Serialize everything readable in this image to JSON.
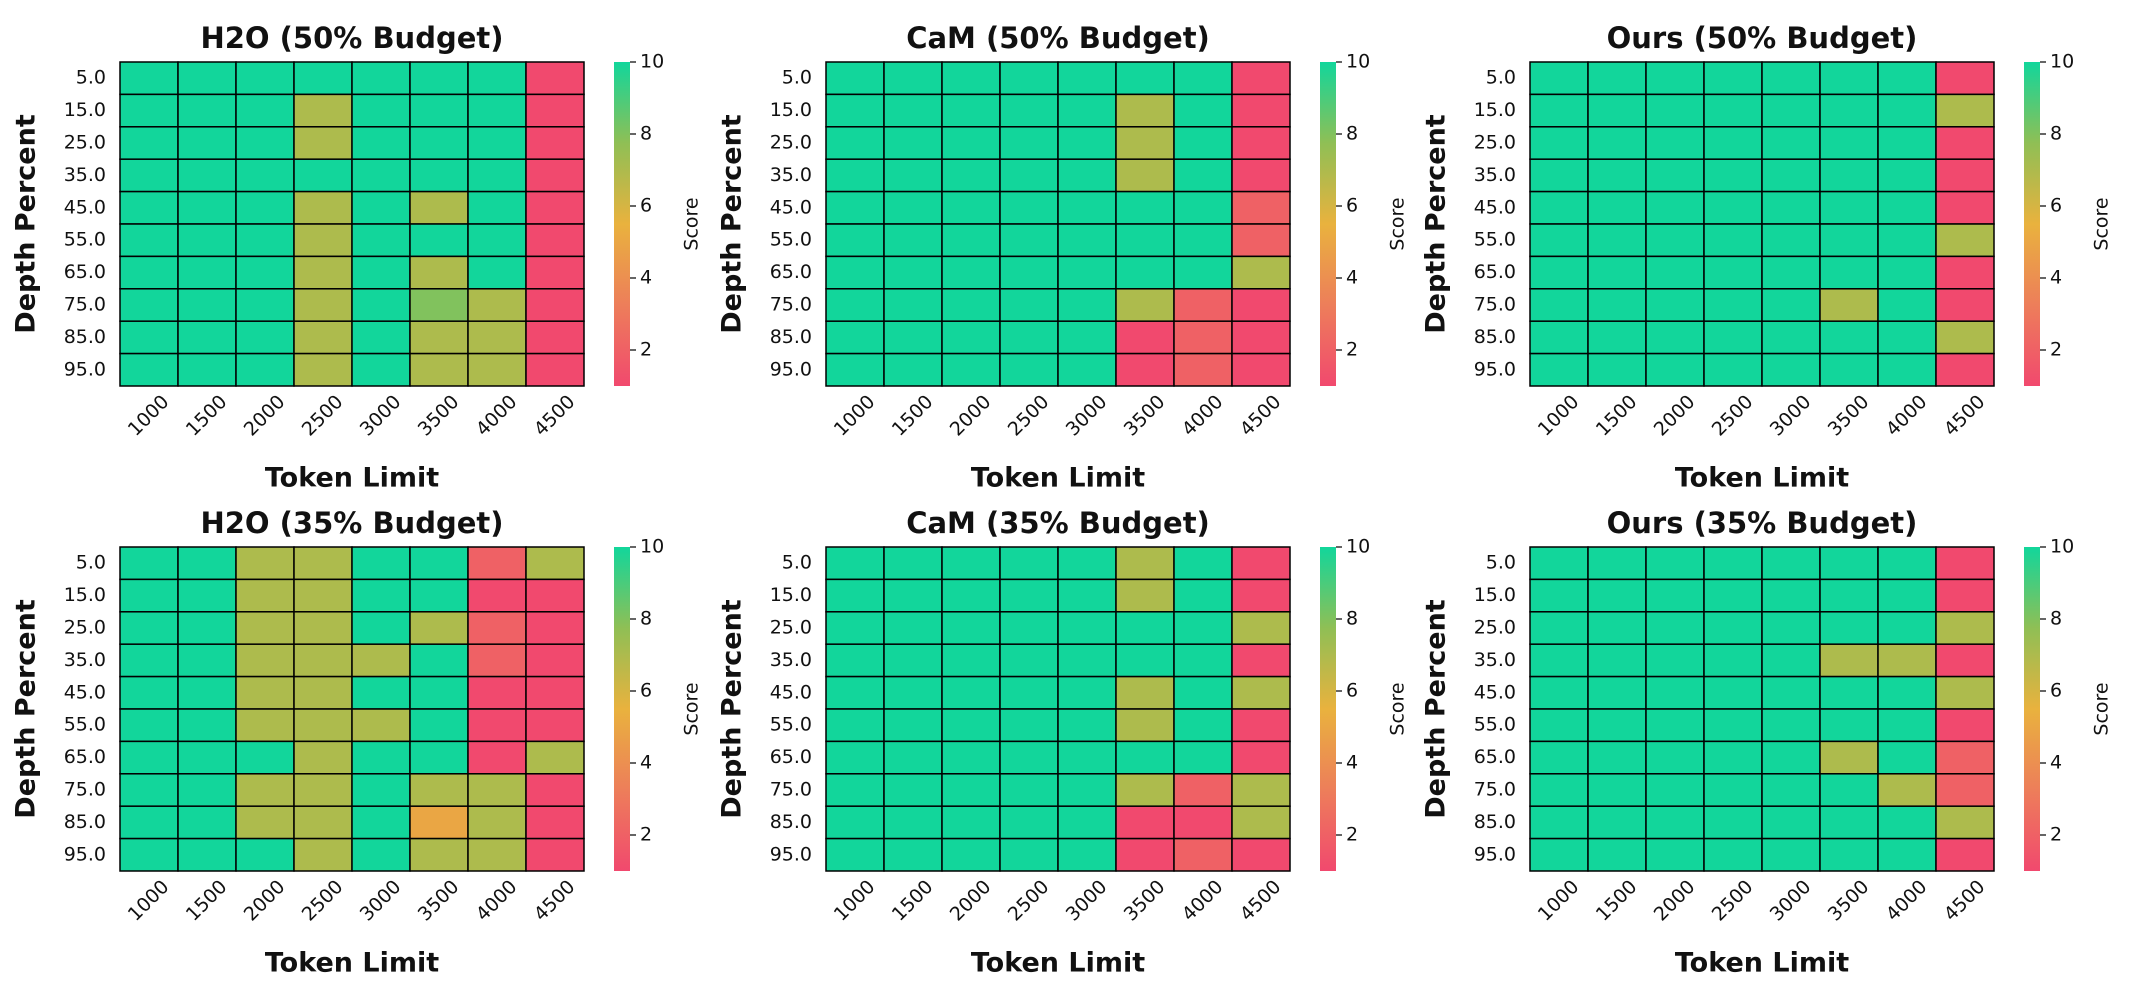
{
  "chart_data": [
    {
      "type": "heatmap",
      "title": "H2O (50% Budget)",
      "x_label": "Token Limit",
      "y_label": "Depth Percent",
      "colorbar_label": "Score",
      "categories": [
        "1000",
        "1500",
        "2000",
        "2500",
        "3000",
        "3500",
        "4000",
        "4500"
      ],
      "y_categories": [
        "5.0",
        "15.0",
        "25.0",
        "35.0",
        "45.0",
        "55.0",
        "65.0",
        "75.0",
        "85.0",
        "95.0"
      ],
      "values": [
        [
          10,
          10,
          10,
          10,
          10,
          10,
          10,
          1
        ],
        [
          10,
          10,
          10,
          7,
          10,
          10,
          10,
          1
        ],
        [
          10,
          10,
          10,
          7,
          10,
          10,
          10,
          1
        ],
        [
          10,
          10,
          10,
          10,
          10,
          10,
          10,
          1
        ],
        [
          10,
          10,
          10,
          7,
          10,
          7,
          10,
          1
        ],
        [
          10,
          10,
          10,
          7,
          10,
          10,
          10,
          1
        ],
        [
          10,
          10,
          10,
          7,
          10,
          7,
          10,
          1
        ],
        [
          10,
          10,
          10,
          7,
          10,
          8,
          7,
          1
        ],
        [
          10,
          10,
          10,
          7,
          10,
          7,
          7,
          1
        ],
        [
          10,
          10,
          10,
          7,
          10,
          7,
          7,
          1
        ]
      ],
      "clim": [
        1,
        10
      ],
      "cticks": [
        2,
        4,
        6,
        8,
        10
      ],
      "colormap": [
        "#f1496e",
        "#ed7e5a",
        "#e9b23e",
        "#8fbf55",
        "#12d69b"
      ]
    },
    {
      "type": "heatmap",
      "title": "CaM (50% Budget)",
      "x_label": "Token Limit",
      "y_label": "Depth Percent",
      "colorbar_label": "Score",
      "categories": [
        "1000",
        "1500",
        "2000",
        "2500",
        "3000",
        "3500",
        "4000",
        "4500"
      ],
      "y_categories": [
        "5.0",
        "15.0",
        "25.0",
        "35.0",
        "45.0",
        "55.0",
        "65.0",
        "75.0",
        "85.0",
        "95.0"
      ],
      "values": [
        [
          10,
          10,
          10,
          10,
          10,
          10,
          10,
          1
        ],
        [
          10,
          10,
          10,
          10,
          10,
          7,
          10,
          1
        ],
        [
          10,
          10,
          10,
          10,
          10,
          7,
          10,
          1
        ],
        [
          10,
          10,
          10,
          10,
          10,
          7,
          10,
          1
        ],
        [
          10,
          10,
          10,
          10,
          10,
          10,
          10,
          2
        ],
        [
          10,
          10,
          10,
          10,
          10,
          10,
          10,
          2
        ],
        [
          10,
          10,
          10,
          10,
          10,
          10,
          10,
          7
        ],
        [
          10,
          10,
          10,
          10,
          10,
          7,
          2,
          1
        ],
        [
          10,
          10,
          10,
          10,
          10,
          1,
          2,
          1
        ],
        [
          10,
          10,
          10,
          10,
          10,
          1,
          2,
          1
        ]
      ],
      "clim": [
        1,
        10
      ],
      "cticks": [
        2,
        4,
        6,
        8,
        10
      ],
      "colormap": [
        "#f1496e",
        "#ed7e5a",
        "#e9b23e",
        "#8fbf55",
        "#12d69b"
      ]
    },
    {
      "type": "heatmap",
      "title": "Ours (50% Budget)",
      "x_label": "Token Limit",
      "y_label": "Depth Percent",
      "colorbar_label": "Score",
      "categories": [
        "1000",
        "1500",
        "2000",
        "2500",
        "3000",
        "3500",
        "4000",
        "4500"
      ],
      "y_categories": [
        "5.0",
        "15.0",
        "25.0",
        "35.0",
        "45.0",
        "55.0",
        "65.0",
        "75.0",
        "85.0",
        "95.0"
      ],
      "values": [
        [
          10,
          10,
          10,
          10,
          10,
          10,
          10,
          1
        ],
        [
          10,
          10,
          10,
          10,
          10,
          10,
          10,
          7
        ],
        [
          10,
          10,
          10,
          10,
          10,
          10,
          10,
          1
        ],
        [
          10,
          10,
          10,
          10,
          10,
          10,
          10,
          1
        ],
        [
          10,
          10,
          10,
          10,
          10,
          10,
          10,
          1
        ],
        [
          10,
          10,
          10,
          10,
          10,
          10,
          10,
          7
        ],
        [
          10,
          10,
          10,
          10,
          10,
          10,
          10,
          1
        ],
        [
          10,
          10,
          10,
          10,
          10,
          7,
          10,
          1
        ],
        [
          10,
          10,
          10,
          10,
          10,
          10,
          10,
          7
        ],
        [
          10,
          10,
          10,
          10,
          10,
          10,
          10,
          1
        ]
      ],
      "clim": [
        1,
        10
      ],
      "cticks": [
        2,
        4,
        6,
        8,
        10
      ],
      "colormap": [
        "#f1496e",
        "#ed7e5a",
        "#e9b23e",
        "#8fbf55",
        "#12d69b"
      ]
    },
    {
      "type": "heatmap",
      "title": "H2O (35% Budget)",
      "x_label": "Token Limit",
      "y_label": "Depth Percent",
      "colorbar_label": "Score",
      "categories": [
        "1000",
        "1500",
        "2000",
        "2500",
        "3000",
        "3500",
        "4000",
        "4500"
      ],
      "y_categories": [
        "5.0",
        "15.0",
        "25.0",
        "35.0",
        "45.0",
        "55.0",
        "65.0",
        "75.0",
        "85.0",
        "95.0"
      ],
      "values": [
        [
          10,
          10,
          7,
          7,
          10,
          10,
          2,
          7
        ],
        [
          10,
          10,
          7,
          7,
          10,
          10,
          1,
          1
        ],
        [
          10,
          10,
          7,
          7,
          10,
          7,
          2,
          1
        ],
        [
          10,
          10,
          7,
          7,
          7,
          10,
          2,
          1
        ],
        [
          10,
          10,
          7,
          7,
          10,
          10,
          1,
          1
        ],
        [
          10,
          10,
          7,
          7,
          7,
          10,
          1,
          1
        ],
        [
          10,
          10,
          10,
          7,
          10,
          10,
          1,
          7
        ],
        [
          10,
          10,
          7,
          7,
          10,
          7,
          7,
          1
        ],
        [
          10,
          10,
          7,
          7,
          10,
          5,
          7,
          1
        ],
        [
          10,
          10,
          10,
          7,
          10,
          7,
          7,
          1
        ]
      ],
      "clim": [
        1,
        10
      ],
      "cticks": [
        2,
        4,
        6,
        8,
        10
      ],
      "colormap": [
        "#f1496e",
        "#ed7e5a",
        "#e9b23e",
        "#8fbf55",
        "#12d69b"
      ]
    },
    {
      "type": "heatmap",
      "title": "CaM (35% Budget)",
      "x_label": "Token Limit",
      "y_label": "Depth Percent",
      "colorbar_label": "Score",
      "categories": [
        "1000",
        "1500",
        "2000",
        "2500",
        "3000",
        "3500",
        "4000",
        "4500"
      ],
      "y_categories": [
        "5.0",
        "15.0",
        "25.0",
        "35.0",
        "45.0",
        "55.0",
        "65.0",
        "75.0",
        "85.0",
        "95.0"
      ],
      "values": [
        [
          10,
          10,
          10,
          10,
          10,
          7,
          10,
          1
        ],
        [
          10,
          10,
          10,
          10,
          10,
          7,
          10,
          1
        ],
        [
          10,
          10,
          10,
          10,
          10,
          10,
          10,
          7
        ],
        [
          10,
          10,
          10,
          10,
          10,
          10,
          10,
          1
        ],
        [
          10,
          10,
          10,
          10,
          10,
          7,
          10,
          7
        ],
        [
          10,
          10,
          10,
          10,
          10,
          7,
          10,
          1
        ],
        [
          10,
          10,
          10,
          10,
          10,
          10,
          10,
          1
        ],
        [
          10,
          10,
          10,
          10,
          10,
          7,
          2,
          7
        ],
        [
          10,
          10,
          10,
          10,
          10,
          1,
          1,
          7
        ],
        [
          10,
          10,
          10,
          10,
          10,
          1,
          2,
          1
        ]
      ],
      "clim": [
        1,
        10
      ],
      "cticks": [
        2,
        4,
        6,
        8,
        10
      ],
      "colormap": [
        "#f1496e",
        "#ed7e5a",
        "#e9b23e",
        "#8fbf55",
        "#12d69b"
      ]
    },
    {
      "type": "heatmap",
      "title": "Ours (35% Budget)",
      "x_label": "Token Limit",
      "y_label": "Depth Percent",
      "colorbar_label": "Score",
      "categories": [
        "1000",
        "1500",
        "2000",
        "2500",
        "3000",
        "3500",
        "4000",
        "4500"
      ],
      "y_categories": [
        "5.0",
        "15.0",
        "25.0",
        "35.0",
        "45.0",
        "55.0",
        "65.0",
        "75.0",
        "85.0",
        "95.0"
      ],
      "values": [
        [
          10,
          10,
          10,
          10,
          10,
          10,
          10,
          1
        ],
        [
          10,
          10,
          10,
          10,
          10,
          10,
          10,
          1
        ],
        [
          10,
          10,
          10,
          10,
          10,
          10,
          10,
          7
        ],
        [
          10,
          10,
          10,
          10,
          10,
          7,
          7,
          1
        ],
        [
          10,
          10,
          10,
          10,
          10,
          10,
          10,
          7
        ],
        [
          10,
          10,
          10,
          10,
          10,
          10,
          10,
          1
        ],
        [
          10,
          10,
          10,
          10,
          10,
          7,
          10,
          2
        ],
        [
          10,
          10,
          10,
          10,
          10,
          10,
          7,
          2
        ],
        [
          10,
          10,
          10,
          10,
          10,
          10,
          10,
          7
        ],
        [
          10,
          10,
          10,
          10,
          10,
          10,
          10,
          1
        ]
      ],
      "clim": [
        1,
        10
      ],
      "cticks": [
        2,
        4,
        6,
        8,
        10
      ],
      "colormap": [
        "#f1496e",
        "#ed7e5a",
        "#e9b23e",
        "#8fbf55",
        "#12d69b"
      ]
    }
  ]
}
